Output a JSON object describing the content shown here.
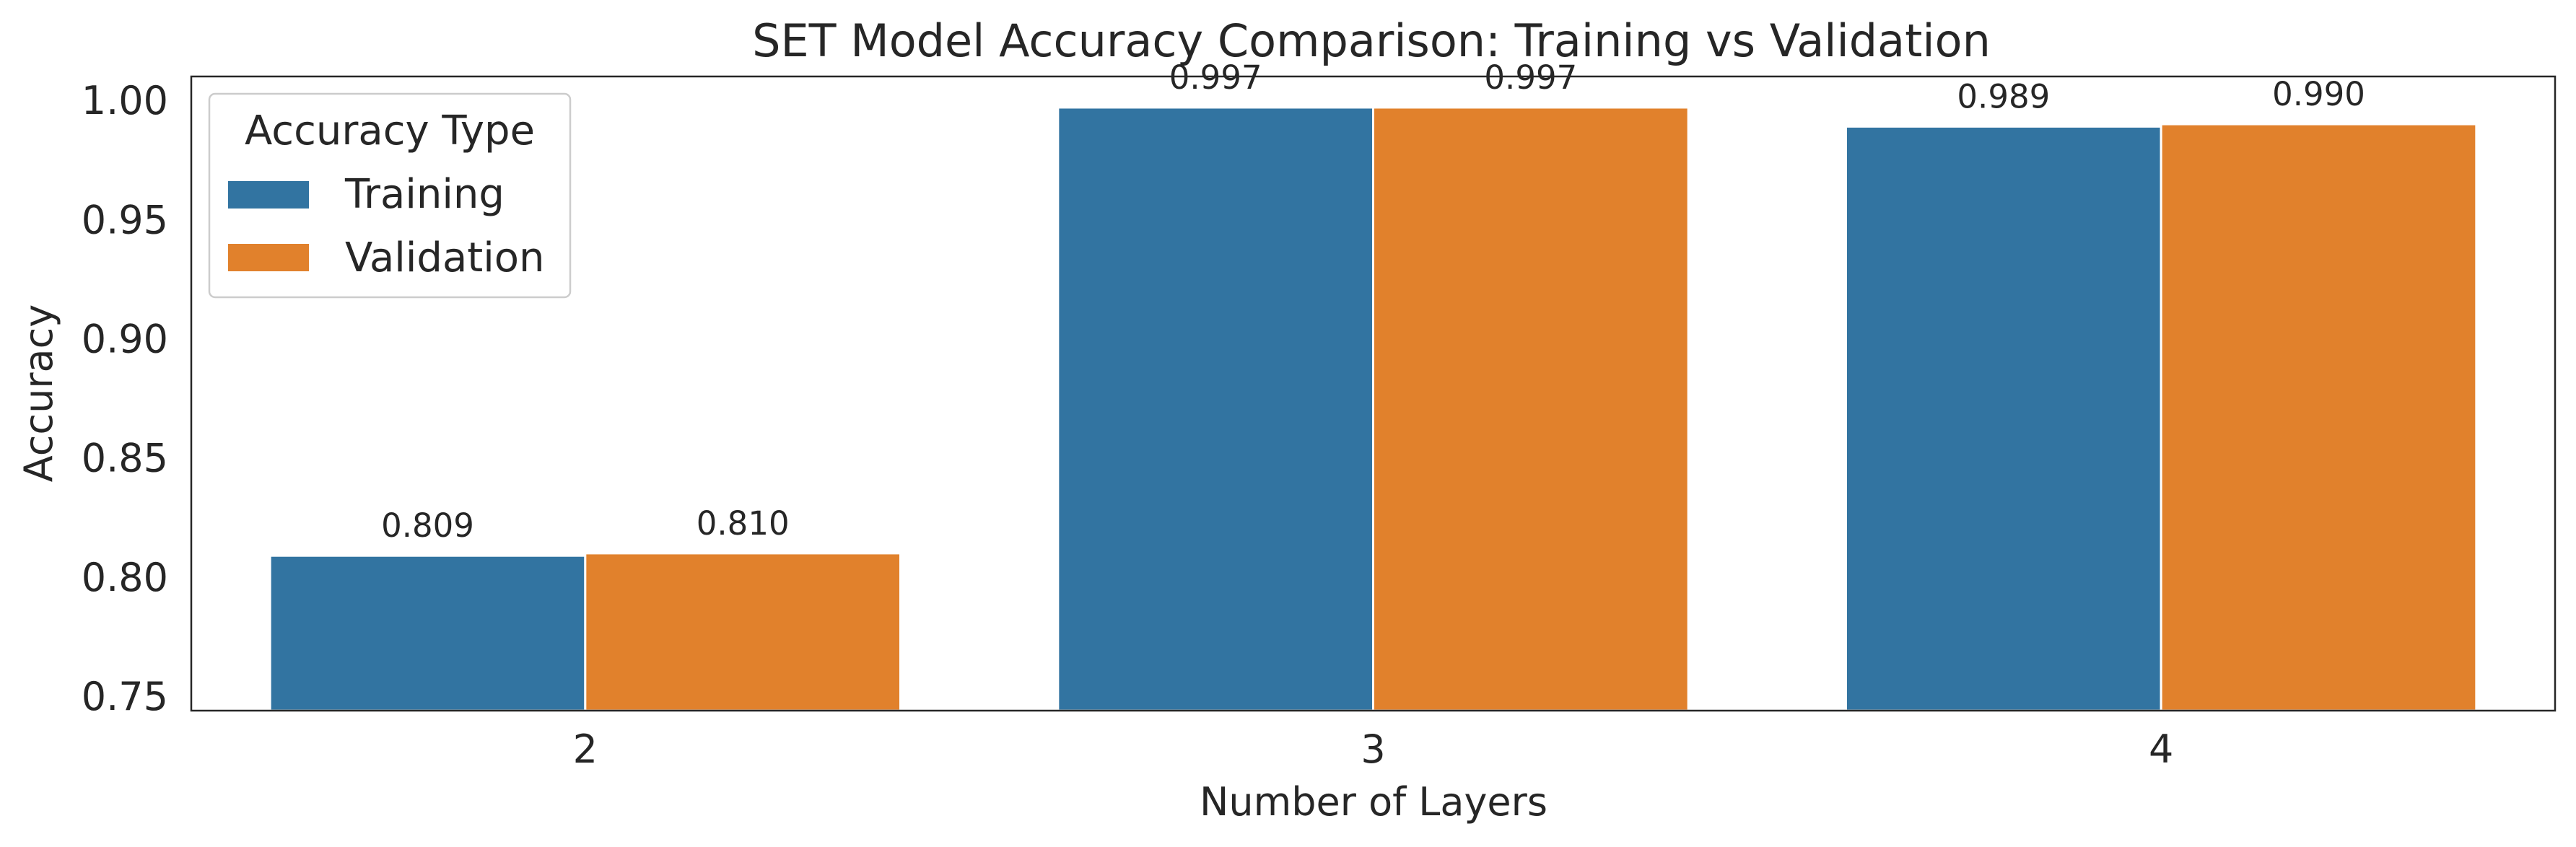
{
  "chart_data": {
    "type": "bar",
    "title": "SET Model Accuracy Comparison: Training vs Validation",
    "xlabel": "Number of Layers",
    "ylabel": "Accuracy",
    "categories": [
      "2",
      "3",
      "4"
    ],
    "series": [
      {
        "name": "Training",
        "values": [
          0.809,
          0.997,
          0.989
        ],
        "labels": [
          "0.809",
          "0.997",
          "0.989"
        ],
        "color": "#3274a1"
      },
      {
        "name": "Validation",
        "values": [
          0.81,
          0.997,
          0.99
        ],
        "labels": [
          "0.810",
          "0.997",
          "0.990"
        ],
        "color": "#e1812c"
      }
    ],
    "ylim": [
      0.744,
      1.01
    ],
    "yticks": [
      0.75,
      0.8,
      0.85,
      0.9,
      0.95,
      1.0
    ],
    "ytick_labels": [
      "0.75",
      "0.80",
      "0.85",
      "0.90",
      "0.95",
      "1.00"
    ],
    "grid": false,
    "legend": {
      "title": "Accuracy Type",
      "placement": "top-left"
    }
  }
}
